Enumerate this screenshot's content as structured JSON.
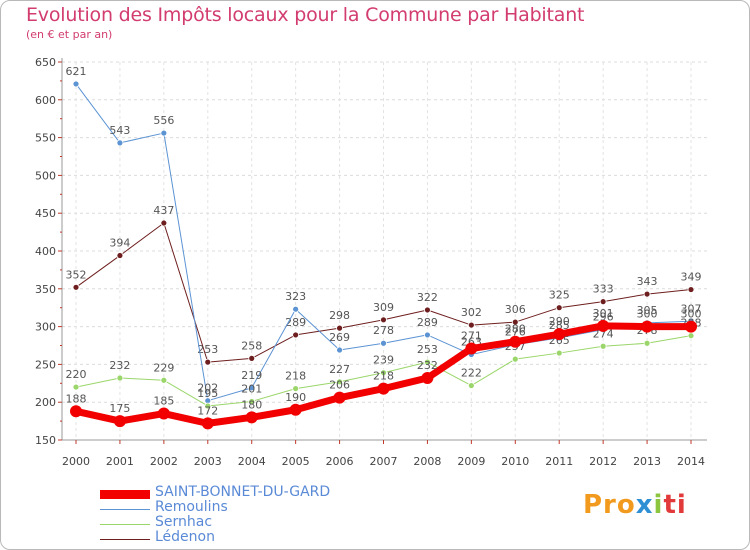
{
  "title": "Evolution des Impôts locaux pour la Commune par Habitant",
  "subtitle": "(en € et par an)",
  "logo": {
    "part1": "Pro",
    "part2": "x",
    "part3": "i",
    "part4": "ti"
  },
  "chart_data": {
    "type": "line",
    "x": [
      2000,
      2001,
      2002,
      2003,
      2004,
      2005,
      2006,
      2007,
      2008,
      2009,
      2010,
      2011,
      2012,
      2013,
      2014
    ],
    "ylim": [
      150,
      650
    ],
    "yticks": [
      150,
      200,
      250,
      300,
      350,
      400,
      450,
      500,
      550,
      600,
      650
    ],
    "grid": true,
    "legend_position": "bottom-left",
    "series": [
      {
        "name": "Lédenon",
        "color": "#6e1e1e",
        "width": 1,
        "values": [
          352,
          394,
          437,
          253,
          258,
          289,
          298,
          309,
          322,
          302,
          306,
          325,
          333,
          343,
          349
        ]
      },
      {
        "name": "Remoulins",
        "color": "#5b93d3",
        "width": 1,
        "values": [
          621,
          543,
          556,
          202,
          219,
          323,
          269,
          278,
          289,
          263,
          276,
          285,
          296,
          305,
          307
        ]
      },
      {
        "name": "Sernhac",
        "color": "#9ad66a",
        "width": 1,
        "values": [
          220,
          232,
          229,
          195,
          201,
          218,
          227,
          239,
          253,
          222,
          257,
          265,
          274,
          278,
          288
        ]
      },
      {
        "name": "SAINT-BONNET-DU-GARD",
        "color": "#f20000",
        "width": 7,
        "values": [
          188,
          175,
          185,
          172,
          180,
          190,
          206,
          218,
          232,
          271,
          280,
          290,
          301,
          300,
          300
        ]
      }
    ],
    "labels_display": {
      "Lédenon": [
        "352",
        "394",
        "437",
        "253",
        "258",
        "289",
        "298",
        "309",
        "322",
        "302",
        "306",
        "325",
        "333",
        "343",
        "349"
      ],
      "Remoulins": [
        "621",
        "543",
        "556",
        "202",
        "219",
        "323",
        "269",
        "278",
        "289",
        "263",
        "276",
        "285",
        "296",
        "305",
        "307"
      ],
      "Sernhac": [
        "220",
        "232",
        "229",
        "195",
        "201",
        "218",
        "227",
        "239",
        "253",
        "222",
        "257",
        "265",
        "274",
        "278",
        "288"
      ],
      "SAINT-BONNET-DU-GARD": [
        "188",
        "175",
        "185",
        "172",
        "180",
        "190",
        "206",
        "218",
        "232",
        "271",
        "280",
        "290",
        "301",
        "300",
        "300"
      ]
    }
  },
  "legend": [
    {
      "label": "SAINT-BONNET-DU-GARD",
      "color": "#f20000",
      "width": 9
    },
    {
      "label": "Remoulins",
      "color": "#5b93d3",
      "width": 1
    },
    {
      "label": "Sernhac",
      "color": "#9ad66a",
      "width": 1
    },
    {
      "label": "Lédenon",
      "color": "#6e1e1e",
      "width": 1
    }
  ]
}
